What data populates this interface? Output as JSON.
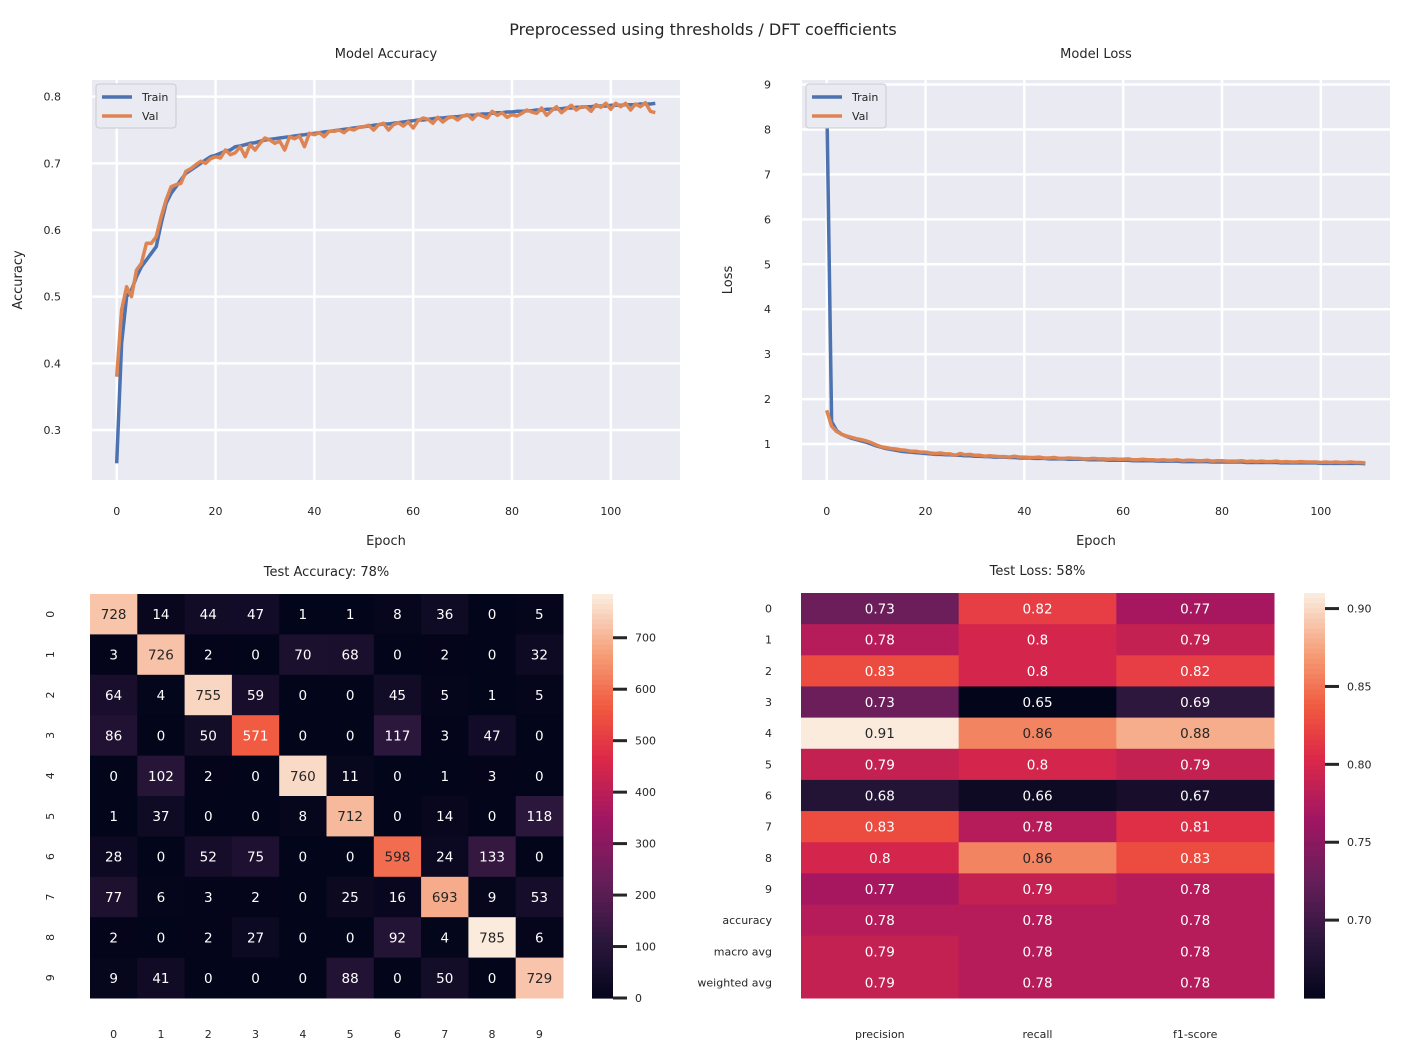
{
  "suptitle": "Preprocessed using thresholds / DFT coefficients",
  "chart_data": [
    {
      "type": "line",
      "title": "Model Accuracy",
      "xlabel": "Epoch",
      "ylabel": "Accuracy",
      "xlim": [
        -5,
        114
      ],
      "ylim": [
        0.225,
        0.825
      ],
      "xticks": [
        0,
        20,
        40,
        60,
        80,
        100
      ],
      "yticks": [
        0.3,
        0.4,
        0.5,
        0.6,
        0.7,
        0.8
      ],
      "grid": true,
      "legend": "upper left",
      "x_start": 0,
      "series": [
        {
          "name": "Train",
          "color": "#4c72b0",
          "values": [
            0.25,
            0.43,
            0.5,
            0.51,
            0.53,
            0.545,
            0.555,
            0.565,
            0.575,
            0.61,
            0.64,
            0.655,
            0.665,
            0.675,
            0.685,
            0.69,
            0.695,
            0.7,
            0.705,
            0.71,
            0.712,
            0.715,
            0.718,
            0.72,
            0.725,
            0.726,
            0.728,
            0.73,
            0.731,
            0.733,
            0.735,
            0.736,
            0.737,
            0.738,
            0.739,
            0.74,
            0.741,
            0.742,
            0.743,
            0.744,
            0.745,
            0.746,
            0.747,
            0.748,
            0.749,
            0.75,
            0.751,
            0.752,
            0.753,
            0.754,
            0.755,
            0.756,
            0.757,
            0.758,
            0.759,
            0.759,
            0.76,
            0.761,
            0.762,
            0.763,
            0.764,
            0.765,
            0.765,
            0.766,
            0.767,
            0.768,
            0.768,
            0.769,
            0.77,
            0.77,
            0.771,
            0.772,
            0.772,
            0.773,
            0.774,
            0.774,
            0.775,
            0.776,
            0.776,
            0.777,
            0.777,
            0.778,
            0.778,
            0.779,
            0.779,
            0.78,
            0.78,
            0.781,
            0.781,
            0.782,
            0.782,
            0.783,
            0.783,
            0.784,
            0.784,
            0.785,
            0.785,
            0.786,
            0.786,
            0.786,
            0.787,
            0.787,
            0.787,
            0.788,
            0.788,
            0.788,
            0.789,
            0.789,
            0.789,
            0.79
          ]
        },
        {
          "name": "Val",
          "color": "#dd8452",
          "values": [
            0.38,
            0.48,
            0.515,
            0.5,
            0.54,
            0.55,
            0.58,
            0.58,
            0.59,
            0.62,
            0.645,
            0.665,
            0.668,
            0.67,
            0.688,
            0.692,
            0.698,
            0.703,
            0.7,
            0.707,
            0.71,
            0.708,
            0.72,
            0.713,
            0.716,
            0.725,
            0.71,
            0.728,
            0.72,
            0.73,
            0.738,
            0.735,
            0.73,
            0.733,
            0.72,
            0.74,
            0.737,
            0.741,
            0.725,
            0.745,
            0.743,
            0.746,
            0.74,
            0.748,
            0.748,
            0.75,
            0.746,
            0.752,
            0.75,
            0.754,
            0.755,
            0.757,
            0.75,
            0.758,
            0.76,
            0.75,
            0.758,
            0.761,
            0.756,
            0.762,
            0.753,
            0.764,
            0.768,
            0.766,
            0.76,
            0.769,
            0.762,
            0.768,
            0.77,
            0.765,
            0.771,
            0.773,
            0.766,
            0.774,
            0.771,
            0.768,
            0.778,
            0.772,
            0.776,
            0.769,
            0.773,
            0.771,
            0.775,
            0.78,
            0.777,
            0.775,
            0.783,
            0.772,
            0.779,
            0.785,
            0.776,
            0.782,
            0.787,
            0.78,
            0.785,
            0.785,
            0.778,
            0.788,
            0.784,
            0.79,
            0.781,
            0.79,
            0.785,
            0.79,
            0.78,
            0.789,
            0.785,
            0.791,
            0.778,
            0.776
          ]
        }
      ]
    },
    {
      "type": "line",
      "title": "Model Loss",
      "xlabel": "Epoch",
      "ylabel": "Loss",
      "xlim": [
        -5,
        114
      ],
      "ylim": [
        0.2,
        9.1
      ],
      "xticks": [
        0,
        20,
        40,
        60,
        80,
        100
      ],
      "yticks": [
        1,
        2,
        3,
        4,
        5,
        6,
        7,
        8,
        9
      ],
      "grid": true,
      "legend": "upper left",
      "x_start": 0,
      "series": [
        {
          "name": "Train",
          "color": "#4c72b0",
          "values": [
            8.8,
            1.5,
            1.3,
            1.22,
            1.17,
            1.13,
            1.1,
            1.07,
            1.04,
            1.0,
            0.96,
            0.93,
            0.9,
            0.88,
            0.86,
            0.84,
            0.83,
            0.82,
            0.81,
            0.8,
            0.79,
            0.78,
            0.77,
            0.77,
            0.76,
            0.76,
            0.75,
            0.75,
            0.74,
            0.74,
            0.73,
            0.73,
            0.72,
            0.72,
            0.71,
            0.71,
            0.71,
            0.7,
            0.7,
            0.69,
            0.69,
            0.69,
            0.68,
            0.68,
            0.68,
            0.67,
            0.67,
            0.67,
            0.67,
            0.66,
            0.66,
            0.66,
            0.66,
            0.65,
            0.65,
            0.65,
            0.65,
            0.64,
            0.64,
            0.64,
            0.64,
            0.64,
            0.63,
            0.63,
            0.63,
            0.63,
            0.63,
            0.62,
            0.62,
            0.62,
            0.62,
            0.62,
            0.61,
            0.61,
            0.61,
            0.61,
            0.61,
            0.61,
            0.6,
            0.6,
            0.6,
            0.6,
            0.6,
            0.6,
            0.6,
            0.59,
            0.59,
            0.59,
            0.59,
            0.59,
            0.59,
            0.59,
            0.58,
            0.58,
            0.58,
            0.58,
            0.58,
            0.58,
            0.58,
            0.58,
            0.57,
            0.57,
            0.57,
            0.57,
            0.57,
            0.57,
            0.57,
            0.57,
            0.57,
            0.56
          ]
        },
        {
          "name": "Val",
          "color": "#dd8452",
          "values": [
            1.75,
            1.4,
            1.28,
            1.22,
            1.18,
            1.15,
            1.12,
            1.1,
            1.07,
            1.03,
            0.98,
            0.94,
            0.92,
            0.9,
            0.89,
            0.87,
            0.86,
            0.84,
            0.84,
            0.82,
            0.82,
            0.8,
            0.79,
            0.8,
            0.78,
            0.78,
            0.75,
            0.79,
            0.76,
            0.77,
            0.75,
            0.75,
            0.73,
            0.74,
            0.73,
            0.72,
            0.72,
            0.71,
            0.73,
            0.71,
            0.71,
            0.7,
            0.7,
            0.71,
            0.69,
            0.69,
            0.7,
            0.68,
            0.68,
            0.69,
            0.68,
            0.68,
            0.67,
            0.67,
            0.68,
            0.67,
            0.67,
            0.66,
            0.67,
            0.66,
            0.66,
            0.67,
            0.65,
            0.65,
            0.66,
            0.65,
            0.65,
            0.64,
            0.65,
            0.64,
            0.64,
            0.65,
            0.63,
            0.64,
            0.64,
            0.63,
            0.63,
            0.64,
            0.62,
            0.63,
            0.63,
            0.62,
            0.62,
            0.62,
            0.63,
            0.61,
            0.62,
            0.61,
            0.62,
            0.61,
            0.61,
            0.62,
            0.6,
            0.61,
            0.6,
            0.6,
            0.61,
            0.6,
            0.6,
            0.6,
            0.59,
            0.6,
            0.59,
            0.6,
            0.59,
            0.59,
            0.6,
            0.59,
            0.59,
            0.58
          ]
        }
      ]
    },
    {
      "type": "heatmap",
      "title": "Test Accuracy: 78%",
      "row_labels": [
        "0",
        "1",
        "2",
        "3",
        "4",
        "5",
        "6",
        "7",
        "8",
        "9"
      ],
      "col_labels": [
        "0",
        "1",
        "2",
        "3",
        "4",
        "5",
        "6",
        "7",
        "8",
        "9"
      ],
      "values": [
        [
          728,
          14,
          44,
          47,
          1,
          1,
          8,
          36,
          0,
          5
        ],
        [
          3,
          726,
          2,
          0,
          70,
          68,
          0,
          2,
          0,
          32
        ],
        [
          64,
          4,
          755,
          59,
          0,
          0,
          45,
          5,
          1,
          5
        ],
        [
          86,
          0,
          50,
          571,
          0,
          0,
          117,
          3,
          47,
          0
        ],
        [
          0,
          102,
          2,
          0,
          760,
          11,
          0,
          1,
          3,
          0
        ],
        [
          1,
          37,
          0,
          0,
          8,
          712,
          0,
          14,
          0,
          118
        ],
        [
          28,
          0,
          52,
          75,
          0,
          0,
          598,
          24,
          133,
          0
        ],
        [
          77,
          6,
          3,
          2,
          0,
          25,
          16,
          693,
          9,
          53
        ],
        [
          2,
          0,
          2,
          27,
          0,
          0,
          92,
          4,
          785,
          6
        ],
        [
          9,
          41,
          0,
          0,
          0,
          88,
          0,
          50,
          0,
          729
        ]
      ],
      "vmin": 0,
      "vmax": 785,
      "colorbar_ticks": [
        0,
        100,
        200,
        300,
        400,
        500,
        600,
        700
      ],
      "colormap": "rocket"
    },
    {
      "type": "heatmap",
      "title": "Test Loss: 58%",
      "row_labels": [
        "0",
        "1",
        "2",
        "3",
        "4",
        "5",
        "6",
        "7",
        "8",
        "9",
        "accuracy",
        "macro avg",
        "weighted avg"
      ],
      "col_labels": [
        "precision",
        "recall",
        "f1-score"
      ],
      "values": [
        [
          0.73,
          0.82,
          0.77
        ],
        [
          0.78,
          0.8,
          0.79
        ],
        [
          0.83,
          0.8,
          0.82
        ],
        [
          0.73,
          0.65,
          0.69
        ],
        [
          0.91,
          0.86,
          0.88
        ],
        [
          0.79,
          0.8,
          0.79
        ],
        [
          0.68,
          0.66,
          0.67
        ],
        [
          0.83,
          0.78,
          0.81
        ],
        [
          0.8,
          0.86,
          0.83
        ],
        [
          0.77,
          0.79,
          0.78
        ],
        [
          0.78,
          0.78,
          0.78
        ],
        [
          0.79,
          0.78,
          0.78
        ],
        [
          0.79,
          0.78,
          0.78
        ]
      ],
      "vmin": 0.65,
      "vmax": 0.91,
      "colorbar_ticks": [
        0.7,
        0.75,
        0.8,
        0.85,
        0.9
      ],
      "colormap": "rocket"
    }
  ]
}
